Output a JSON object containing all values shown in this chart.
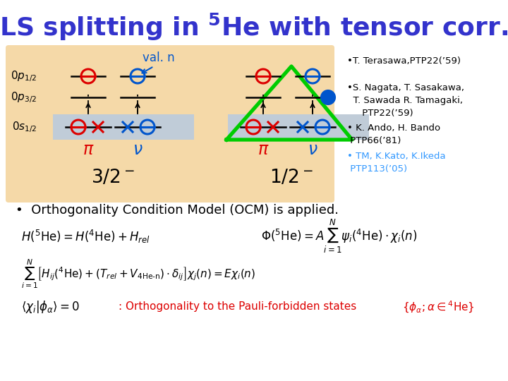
{
  "title_color": "#3333cc",
  "title_fontsize": 26,
  "bg_color": "#ffffff",
  "panel_bg": "#f5d9a8",
  "refs": [
    {
      "text": "•T. Terasawa,PTP22(’59)",
      "color": "#000000"
    },
    {
      "text": "•S. Nagata, T. Sasakawa,\n  T. Sawada R. Tamagaki,\n     PTP22(’59)",
      "color": "#000000"
    },
    {
      "text": "• K. Ando, H. Bando\n PTP66(’81)",
      "color": "#000000"
    },
    {
      "text": "• TM, K.Kato, K.Ikeda\n PTP113(’05)",
      "color": "#3399ff"
    }
  ],
  "bullet_text": "•  Orthogonality Condition Model (OCM) is applied.",
  "red": "#dd0000",
  "blue": "#0055cc",
  "green_triangle": "#00cc00"
}
